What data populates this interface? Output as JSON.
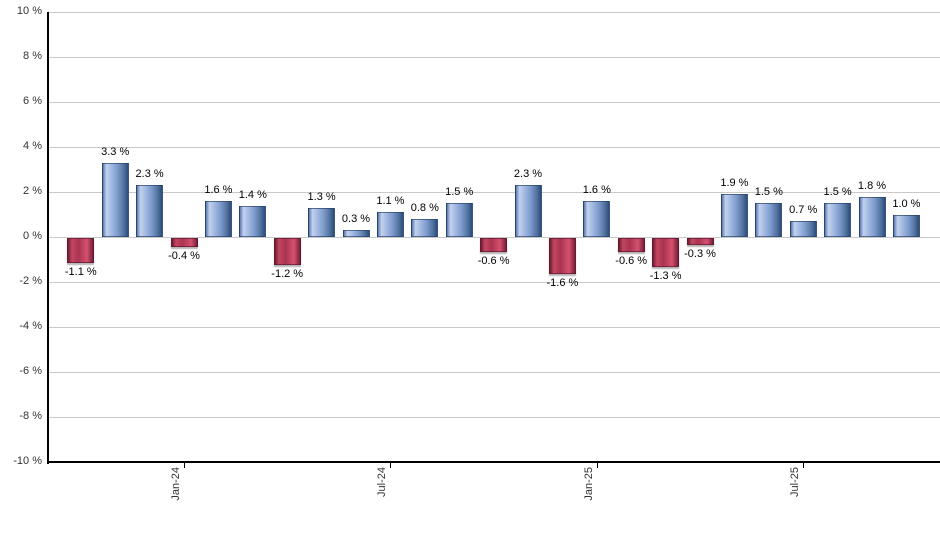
{
  "chart_data": {
    "type": "bar",
    "title": "",
    "description": "Monthly returns bar chart, positive months blue, negative months red",
    "values": [
      -1.1,
      3.3,
      2.3,
      -0.4,
      1.6,
      1.4,
      -1.2,
      1.3,
      0.3,
      1.1,
      0.8,
      1.5,
      -0.6,
      2.3,
      -1.6,
      1.6,
      -0.6,
      -1.3,
      -0.3,
      1.9,
      1.5,
      0.7,
      1.5,
      1.8,
      1.0
    ],
    "value_labels": [
      "-1.1 %",
      "3.3 %",
      "2.3 %",
      "-0.4 %",
      "1.6 %",
      "1.4 %",
      "-1.2 %",
      "1.3 %",
      "0.3 %",
      "1.1 %",
      "0.8 %",
      "1.5 %",
      "-0.6 %",
      "2.3 %",
      "-1.6 %",
      "1.6 %",
      "-0.6 %",
      "-1.3 %",
      "-0.3 %",
      "1.9 %",
      "1.5 %",
      "0.7 %",
      "1.5 %",
      "1.8 %",
      "1.0 %"
    ],
    "x_tick_labels": [
      {
        "bar_index": 3,
        "label": "Jan-24"
      },
      {
        "bar_index": 9,
        "label": "Jul-24"
      },
      {
        "bar_index": 15,
        "label": "Jan-25"
      },
      {
        "bar_index": 21,
        "label": "Jul-25"
      }
    ],
    "y_axis": {
      "min": -10,
      "max": 10,
      "step": 2,
      "tick_labels": [
        "10 %",
        "8 %",
        "6 %",
        "4 %",
        "2 %",
        "0 %",
        "-2 %",
        "-4 %",
        "-6 %",
        "-8 %",
        "-10 %"
      ]
    },
    "grid": "horizontal",
    "legend": "none",
    "colors": {
      "positive_edge": "#2c4c7e",
      "positive_left": "#5d7bae",
      "positive_highlight": "#c2d1ee",
      "positive_mid": "#7e9bce",
      "negative_edge": "#6f1c34",
      "negative_bright": "#d5516e",
      "negative_mid": "#a93350",
      "gridline": "#c9c9c9",
      "axis": "#000000",
      "value_label": "#000000",
      "axis_label": "#333333"
    }
  }
}
